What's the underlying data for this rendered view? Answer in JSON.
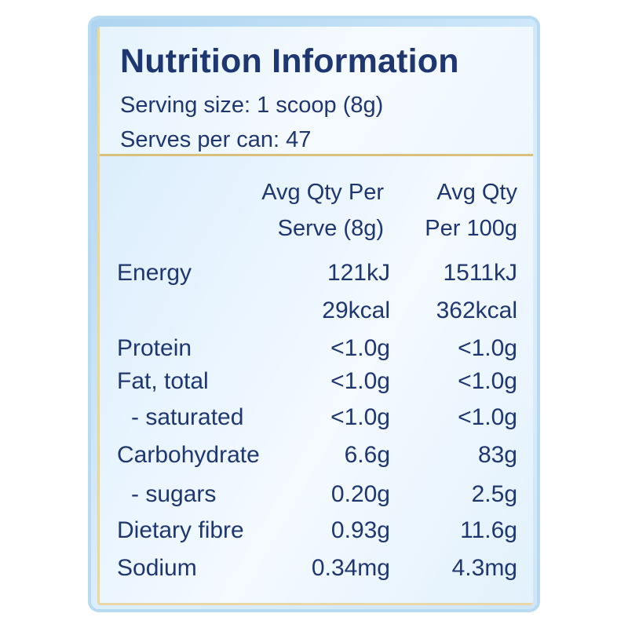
{
  "title": "Nutrition Information",
  "serving_size": "Serving size: 1 scoop (8g)",
  "serves_per_can": "Serves per can: 47",
  "columns": {
    "per_serve": [
      "Avg Qty Per",
      "Serve (8g)"
    ],
    "per_100g": [
      "Avg Qty",
      "Per 100g"
    ]
  },
  "rows": [
    {
      "label": "Energy",
      "per_serve": "121kJ",
      "per_100g": "1511kJ"
    },
    {
      "label": "",
      "per_serve": "29kcal",
      "per_100g": "362kcal"
    },
    {
      "label": "Protein",
      "per_serve": "<1.0g",
      "per_100g": "<1.0g"
    },
    {
      "label": "Fat, total",
      "per_serve": "<1.0g",
      "per_100g": "<1.0g"
    },
    {
      "label": "- saturated",
      "per_serve": "<1.0g",
      "per_100g": "<1.0g"
    },
    {
      "label": "Carbohydrate",
      "per_serve": "6.6g",
      "per_100g": "83g"
    },
    {
      "label": "- sugars",
      "per_serve": "0.20g",
      "per_100g": "2.5g"
    },
    {
      "label": "Dietary fibre",
      "per_serve": "0.93g",
      "per_100g": "11.6g"
    },
    {
      "label": "Sodium",
      "per_serve": "0.34mg",
      "per_100g": "4.3mg"
    }
  ]
}
